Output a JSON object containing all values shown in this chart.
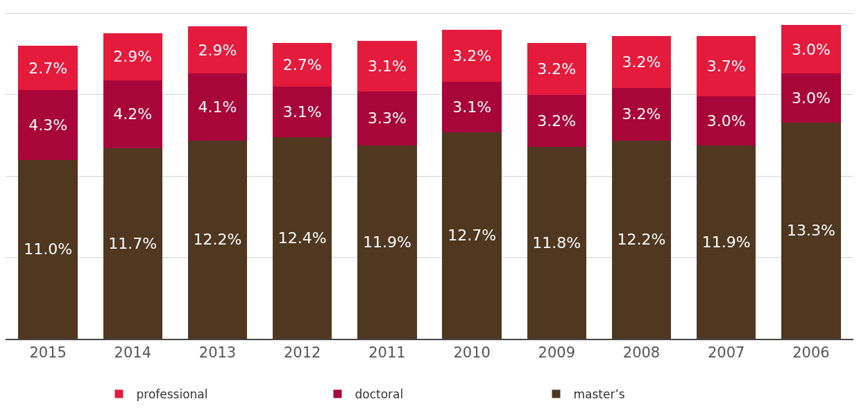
{
  "chart_data": {
    "type": "bar",
    "stacked": true,
    "categories": [
      "2015",
      "2014",
      "2013",
      "2012",
      "2011",
      "2010",
      "2009",
      "2008",
      "2007",
      "2006"
    ],
    "series": [
      {
        "name": "master’s",
        "color": "#4f3720",
        "values": [
          11.0,
          11.7,
          12.2,
          12.4,
          11.9,
          12.7,
          11.8,
          12.2,
          11.9,
          13.3
        ],
        "value_labels": [
          "11.0%",
          "11.7%",
          "12.2%",
          "12.4%",
          "11.9%",
          "12.7%",
          "11.8%",
          "12.2%",
          "11.9%",
          "13.3%"
        ]
      },
      {
        "name": "doctoral",
        "color": "#a8063a",
        "values": [
          4.3,
          4.2,
          4.1,
          3.1,
          3.3,
          3.1,
          3.2,
          3.2,
          3.0,
          3.0
        ],
        "value_labels": [
          "4.3%",
          "4.2%",
          "4.1%",
          "3.1%",
          "3.3%",
          "3.1%",
          "3.2%",
          "3.2%",
          "3.0%",
          "3.0%"
        ]
      },
      {
        "name": "professional",
        "color": "#e41b3c",
        "values": [
          2.7,
          2.9,
          2.9,
          2.7,
          3.1,
          3.2,
          3.2,
          3.2,
          3.7,
          3.0
        ],
        "value_labels": [
          "2.7%",
          "2.9%",
          "2.9%",
          "2.7%",
          "3.1%",
          "3.2%",
          "3.2%",
          "3.2%",
          "3.7%",
          "3.0%"
        ]
      }
    ],
    "grid": "y",
    "tick_labels": "x",
    "legend": "bottom"
  }
}
